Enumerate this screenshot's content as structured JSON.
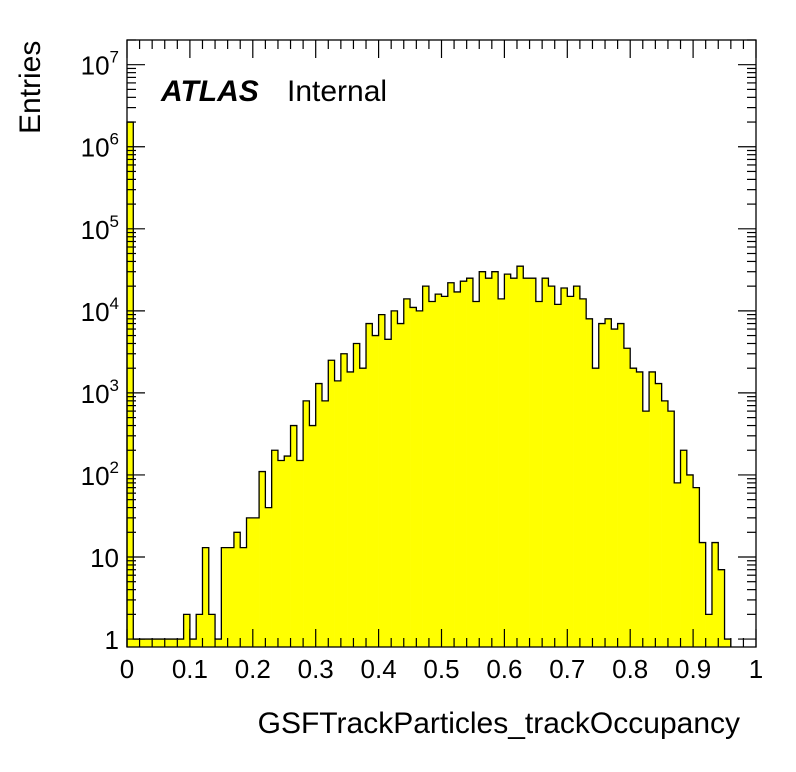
{
  "chart_data": {
    "type": "histogram",
    "title": "",
    "xlabel": "GSFTrackParticles_trackOccupancy",
    "ylabel": "Entries",
    "xlim": [
      0,
      1
    ],
    "ylim": [
      0.8,
      20000000
    ],
    "yscale": "log",
    "bin_width": 0.01,
    "x_ticks": [
      0,
      0.1,
      0.2,
      0.3,
      0.4,
      0.5,
      0.6,
      0.7,
      0.8,
      0.9,
      1
    ],
    "x_tick_labels": [
      "0",
      "0.1",
      "0.2",
      "0.3",
      "0.4",
      "0.5",
      "0.6",
      "0.7",
      "0.8",
      "0.9",
      "1"
    ],
    "y_ticks": [
      {
        "value": 1,
        "base": "1",
        "exp": ""
      },
      {
        "value": 10,
        "base": "10",
        "exp": ""
      },
      {
        "value": 100,
        "base": "10",
        "exp": "2"
      },
      {
        "value": 1000,
        "base": "10",
        "exp": "3"
      },
      {
        "value": 10000,
        "base": "10",
        "exp": "4"
      },
      {
        "value": 100000,
        "base": "10",
        "exp": "5"
      },
      {
        "value": 1000000,
        "base": "10",
        "exp": "6"
      },
      {
        "value": 10000000,
        "base": "10",
        "exp": "7"
      }
    ],
    "fill_color": "#ffff00",
    "line_color": "#000000",
    "grid": false,
    "annotation": {
      "bold": "ATLAS",
      "normal": "Internal"
    },
    "bins": [
      {
        "x": 0.0,
        "y": 2000000
      },
      {
        "x": 0.01,
        "y": 1
      },
      {
        "x": 0.02,
        "y": 1
      },
      {
        "x": 0.03,
        "y": 1
      },
      {
        "x": 0.04,
        "y": 1
      },
      {
        "x": 0.05,
        "y": 1
      },
      {
        "x": 0.06,
        "y": 1
      },
      {
        "x": 0.07,
        "y": 1
      },
      {
        "x": 0.08,
        "y": 1
      },
      {
        "x": 0.09,
        "y": 2
      },
      {
        "x": 0.1,
        "y": 1
      },
      {
        "x": 0.11,
        "y": 2
      },
      {
        "x": 0.12,
        "y": 13
      },
      {
        "x": 0.13,
        "y": 2
      },
      {
        "x": 0.14,
        "y": 1
      },
      {
        "x": 0.15,
        "y": 13
      },
      {
        "x": 0.16,
        "y": 13
      },
      {
        "x": 0.17,
        "y": 20
      },
      {
        "x": 0.18,
        "y": 13
      },
      {
        "x": 0.19,
        "y": 30
      },
      {
        "x": 0.2,
        "y": 30
      },
      {
        "x": 0.21,
        "y": 110
      },
      {
        "x": 0.22,
        "y": 40
      },
      {
        "x": 0.23,
        "y": 200
      },
      {
        "x": 0.24,
        "y": 150
      },
      {
        "x": 0.25,
        "y": 170
      },
      {
        "x": 0.26,
        "y": 400
      },
      {
        "x": 0.27,
        "y": 150
      },
      {
        "x": 0.28,
        "y": 800
      },
      {
        "x": 0.29,
        "y": 400
      },
      {
        "x": 0.3,
        "y": 1300
      },
      {
        "x": 0.31,
        "y": 800
      },
      {
        "x": 0.32,
        "y": 2500
      },
      {
        "x": 0.33,
        "y": 1400
      },
      {
        "x": 0.34,
        "y": 3000
      },
      {
        "x": 0.35,
        "y": 1800
      },
      {
        "x": 0.36,
        "y": 4000
      },
      {
        "x": 0.37,
        "y": 2000
      },
      {
        "x": 0.38,
        "y": 7000
      },
      {
        "x": 0.39,
        "y": 5000
      },
      {
        "x": 0.4,
        "y": 9000
      },
      {
        "x": 0.41,
        "y": 4500
      },
      {
        "x": 0.42,
        "y": 10000
      },
      {
        "x": 0.43,
        "y": 7000
      },
      {
        "x": 0.44,
        "y": 14000
      },
      {
        "x": 0.45,
        "y": 11000
      },
      {
        "x": 0.46,
        "y": 10000
      },
      {
        "x": 0.47,
        "y": 20000
      },
      {
        "x": 0.48,
        "y": 13000
      },
      {
        "x": 0.49,
        "y": 16000
      },
      {
        "x": 0.5,
        "y": 15000
      },
      {
        "x": 0.51,
        "y": 22000
      },
      {
        "x": 0.52,
        "y": 17000
      },
      {
        "x": 0.53,
        "y": 23000
      },
      {
        "x": 0.54,
        "y": 25000
      },
      {
        "x": 0.55,
        "y": 13000
      },
      {
        "x": 0.56,
        "y": 30000
      },
      {
        "x": 0.57,
        "y": 25000
      },
      {
        "x": 0.58,
        "y": 30000
      },
      {
        "x": 0.59,
        "y": 14000
      },
      {
        "x": 0.6,
        "y": 28000
      },
      {
        "x": 0.61,
        "y": 25000
      },
      {
        "x": 0.62,
        "y": 35000
      },
      {
        "x": 0.63,
        "y": 25000
      },
      {
        "x": 0.64,
        "y": 25000
      },
      {
        "x": 0.65,
        "y": 13000
      },
      {
        "x": 0.66,
        "y": 25000
      },
      {
        "x": 0.67,
        "y": 20000
      },
      {
        "x": 0.68,
        "y": 12000
      },
      {
        "x": 0.69,
        "y": 19000
      },
      {
        "x": 0.7,
        "y": 15000
      },
      {
        "x": 0.71,
        "y": 20000
      },
      {
        "x": 0.72,
        "y": 14000
      },
      {
        "x": 0.73,
        "y": 8000
      },
      {
        "x": 0.74,
        "y": 2000
      },
      {
        "x": 0.75,
        "y": 7000
      },
      {
        "x": 0.76,
        "y": 8000
      },
      {
        "x": 0.77,
        "y": 6000
      },
      {
        "x": 0.78,
        "y": 7000
      },
      {
        "x": 0.79,
        "y": 3500
      },
      {
        "x": 0.8,
        "y": 2000
      },
      {
        "x": 0.81,
        "y": 1800
      },
      {
        "x": 0.82,
        "y": 600
      },
      {
        "x": 0.83,
        "y": 1800
      },
      {
        "x": 0.84,
        "y": 1300
      },
      {
        "x": 0.85,
        "y": 800
      },
      {
        "x": 0.86,
        "y": 600
      },
      {
        "x": 0.87,
        "y": 80
      },
      {
        "x": 0.88,
        "y": 200
      },
      {
        "x": 0.89,
        "y": 100
      },
      {
        "x": 0.9,
        "y": 70
      },
      {
        "x": 0.91,
        "y": 15
      },
      {
        "x": 0.92,
        "y": 2
      },
      {
        "x": 0.93,
        "y": 15
      },
      {
        "x": 0.94,
        "y": 7
      },
      {
        "x": 0.95,
        "y": 1
      }
    ]
  }
}
